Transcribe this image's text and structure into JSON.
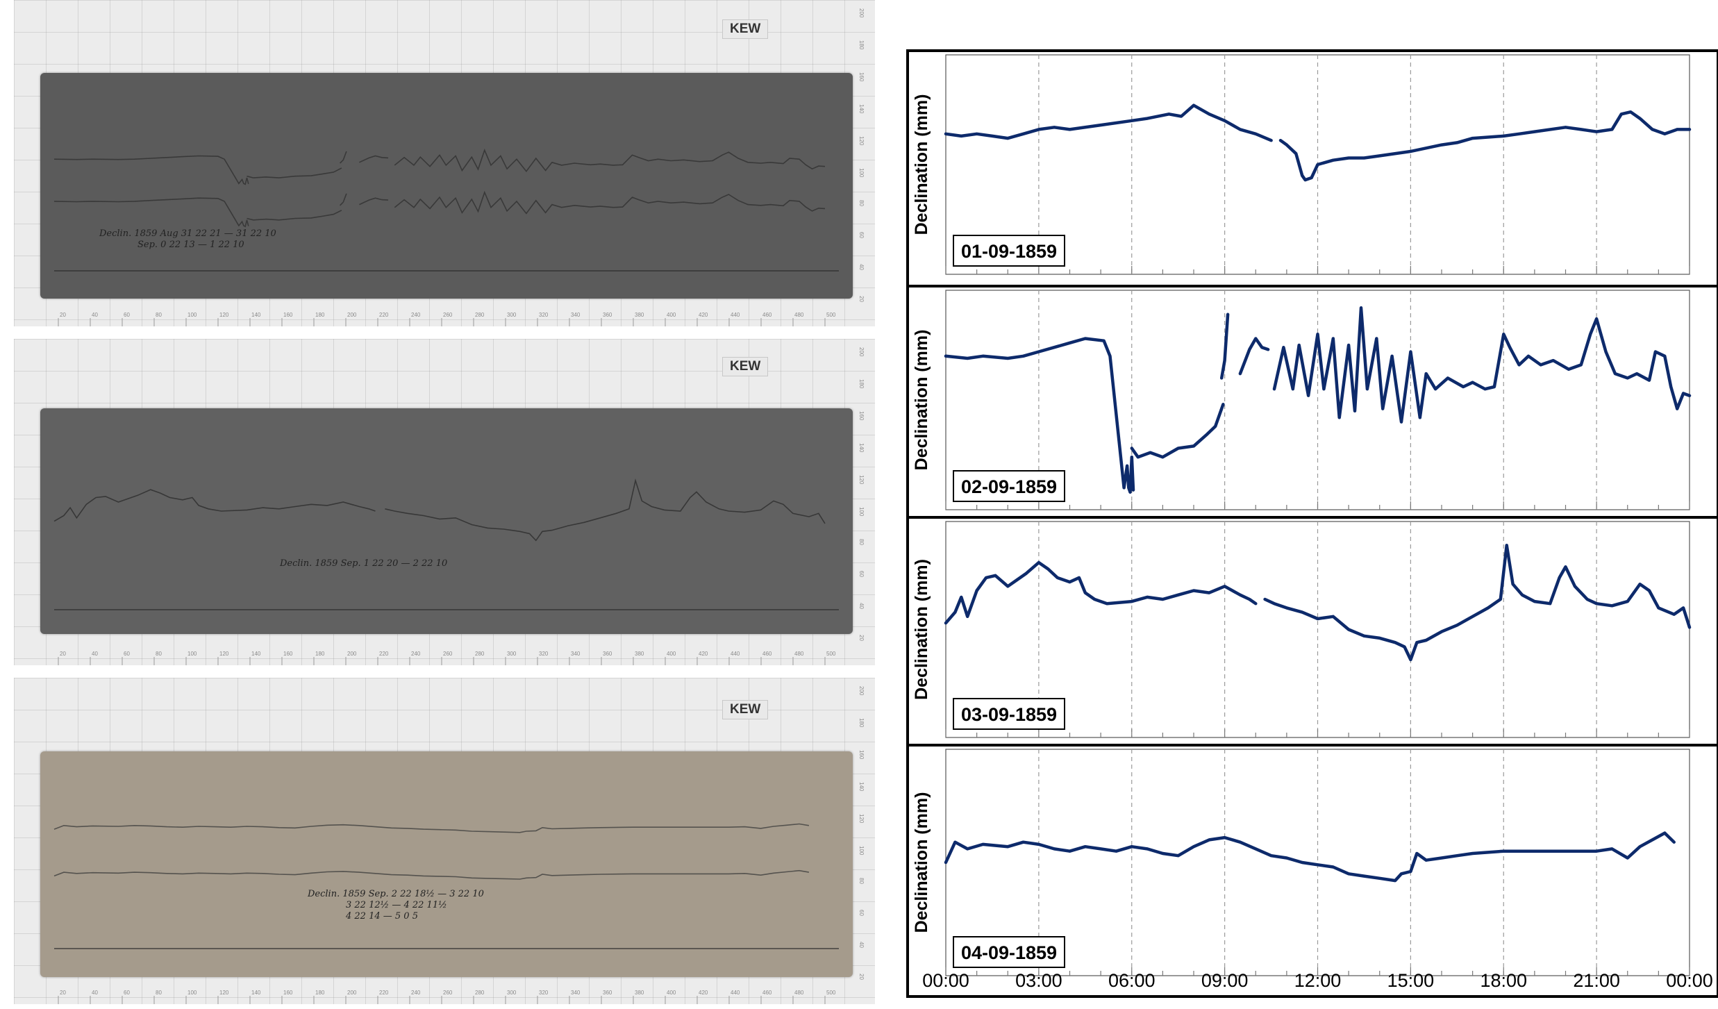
{
  "left": {
    "sheets": [
      {
        "stamp": "KEW",
        "paper_color": "#5b5b5b",
        "trace_color": "#2e2e2e",
        "note_line1": "Declin. 1859 Aug 31 22 21 — 31 22 10",
        "note_line2": "Sep. 0 22 13 — 1 22 10"
      },
      {
        "stamp": "KEW",
        "paper_color": "#616161",
        "trace_color": "#2a2a2a",
        "note_line1": "Declin. 1859 Sep. 1 22 20 — 2 22 10",
        "note_line2": ""
      },
      {
        "stamp": "KEW",
        "paper_color": "#a59b8c",
        "trace_color": "#3a3a3a",
        "note_line1": "Declin. 1859 Sep. 2 22 18½ — 3 22 10",
        "note_line2": "3 22 12½ — 4 22 11½",
        "note_line3": "4 22 14 — 5 0 5"
      }
    ],
    "ruler_bottom": [
      "20",
      "40",
      "60",
      "80",
      "100",
      "120",
      "140",
      "160",
      "180",
      "200",
      "220",
      "240",
      "260",
      "280",
      "300",
      "320",
      "340",
      "360",
      "380",
      "400",
      "420",
      "440",
      "460",
      "480",
      "500"
    ],
    "ruler_right": [
      "200",
      "180",
      "160",
      "140",
      "120",
      "100",
      "80",
      "60",
      "40",
      "20"
    ]
  },
  "chart_data": {
    "type": "line",
    "series_color": "#0d2a6b",
    "ylabel": "Declination (mm)",
    "x_unit": "hours",
    "xlim": [
      0,
      24
    ],
    "ylim": [
      0,
      1
    ],
    "x_ticks": [
      "00:00",
      "03:00",
      "06:00",
      "09:00",
      "12:00",
      "15:00",
      "18:00",
      "21:00",
      "00:00"
    ],
    "vertical_gridlines_every_hours": 3,
    "panels": [
      {
        "date": "01-09-1859",
        "segments": [
          [
            [
              0,
              0.64
            ],
            [
              0.5,
              0.63
            ],
            [
              1,
              0.64
            ],
            [
              1.5,
              0.63
            ],
            [
              2,
              0.62
            ],
            [
              2.5,
              0.64
            ],
            [
              3,
              0.66
            ],
            [
              3.5,
              0.67
            ],
            [
              4,
              0.66
            ],
            [
              5,
              0.68
            ],
            [
              6,
              0.7
            ],
            [
              6.5,
              0.71
            ],
            [
              7.2,
              0.73
            ],
            [
              7.6,
              0.72
            ],
            [
              8,
              0.77
            ],
            [
              8.5,
              0.73
            ],
            [
              9,
              0.7
            ],
            [
              9.5,
              0.66
            ],
            [
              10,
              0.64
            ],
            [
              10.5,
              0.61
            ]
          ],
          [
            [
              10.8,
              0.61
            ],
            [
              11,
              0.59
            ],
            [
              11.3,
              0.55
            ],
            [
              11.5,
              0.45
            ],
            [
              11.6,
              0.43
            ],
            [
              11.8,
              0.44
            ],
            [
              12,
              0.5
            ],
            [
              12.5,
              0.52
            ],
            [
              13,
              0.53
            ],
            [
              13.5,
              0.53
            ],
            [
              14,
              0.54
            ],
            [
              15,
              0.56
            ],
            [
              16,
              0.59
            ],
            [
              16.5,
              0.6
            ],
            [
              17,
              0.62
            ],
            [
              18,
              0.63
            ],
            [
              18.5,
              0.64
            ],
            [
              19,
              0.65
            ],
            [
              20,
              0.67
            ],
            [
              20.5,
              0.66
            ],
            [
              21,
              0.65
            ],
            [
              21.5,
              0.66
            ],
            [
              21.8,
              0.73
            ],
            [
              22.1,
              0.74
            ],
            [
              22.4,
              0.71
            ],
            [
              22.8,
              0.66
            ],
            [
              23.2,
              0.64
            ],
            [
              23.6,
              0.66
            ],
            [
              24,
              0.66
            ]
          ]
        ]
      },
      {
        "date": "02-09-1859",
        "segments": [
          [
            [
              0,
              0.7
            ],
            [
              0.7,
              0.69
            ],
            [
              1.2,
              0.7
            ],
            [
              2,
              0.69
            ],
            [
              2.5,
              0.7
            ],
            [
              3,
              0.72
            ],
            [
              3.5,
              0.74
            ],
            [
              4,
              0.76
            ],
            [
              4.5,
              0.78
            ],
            [
              5.1,
              0.77
            ],
            [
              5.3,
              0.7
            ],
            [
              5.6,
              0.3
            ],
            [
              5.75,
              0.1
            ],
            [
              5.85,
              0.2
            ],
            [
              5.9,
              0.1
            ],
            [
              5.95,
              0.08
            ],
            [
              6,
              0.24
            ],
            [
              6.05,
              0.09
            ]
          ],
          [
            [
              6.0,
              0.28
            ],
            [
              6.2,
              0.24
            ],
            [
              6.6,
              0.26
            ],
            [
              7,
              0.24
            ],
            [
              7.5,
              0.28
            ],
            [
              8,
              0.29
            ],
            [
              8.4,
              0.34
            ],
            [
              8.7,
              0.38
            ],
            [
              8.95,
              0.48
            ]
          ],
          [
            [
              8.9,
              0.6
            ],
            [
              9.0,
              0.68
            ],
            [
              9.1,
              0.89
            ]
          ],
          [
            [
              9.5,
              0.62
            ],
            [
              9.8,
              0.73
            ],
            [
              10,
              0.78
            ],
            [
              10.2,
              0.74
            ],
            [
              10.4,
              0.73
            ]
          ],
          [
            [
              10.6,
              0.55
            ],
            [
              10.9,
              0.74
            ],
            [
              11.2,
              0.55
            ],
            [
              11.4,
              0.75
            ],
            [
              11.7,
              0.52
            ],
            [
              12,
              0.8
            ],
            [
              12.2,
              0.55
            ],
            [
              12.5,
              0.78
            ],
            [
              12.7,
              0.42
            ],
            [
              13,
              0.75
            ],
            [
              13.2,
              0.45
            ],
            [
              13.4,
              0.92
            ],
            [
              13.6,
              0.55
            ],
            [
              13.9,
              0.78
            ],
            [
              14.1,
              0.46
            ],
            [
              14.4,
              0.7
            ],
            [
              14.7,
              0.4
            ],
            [
              15,
              0.72
            ],
            [
              15.3,
              0.42
            ],
            [
              15.5,
              0.62
            ],
            [
              15.8,
              0.55
            ],
            [
              16.2,
              0.6
            ],
            [
              16.7,
              0.56
            ],
            [
              17,
              0.58
            ],
            [
              17.4,
              0.55
            ],
            [
              17.7,
              0.56
            ],
            [
              18,
              0.8
            ],
            [
              18.2,
              0.74
            ],
            [
              18.5,
              0.66
            ],
            [
              18.8,
              0.7
            ],
            [
              19.2,
              0.66
            ],
            [
              19.6,
              0.68
            ],
            [
              20.1,
              0.64
            ],
            [
              20.5,
              0.66
            ],
            [
              20.8,
              0.8
            ],
            [
              21,
              0.87
            ],
            [
              21.3,
              0.72
            ],
            [
              21.6,
              0.62
            ],
            [
              22,
              0.6
            ],
            [
              22.3,
              0.62
            ],
            [
              22.7,
              0.59
            ],
            [
              22.9,
              0.72
            ],
            [
              23.2,
              0.7
            ],
            [
              23.4,
              0.56
            ],
            [
              23.6,
              0.46
            ],
            [
              23.8,
              0.53
            ],
            [
              24,
              0.52
            ]
          ]
        ]
      },
      {
        "date": "03-09-1859",
        "segments": [
          [
            [
              0,
              0.53
            ],
            [
              0.3,
              0.58
            ],
            [
              0.5,
              0.65
            ],
            [
              0.7,
              0.56
            ],
            [
              1,
              0.68
            ],
            [
              1.3,
              0.74
            ],
            [
              1.6,
              0.75
            ],
            [
              2,
              0.7
            ],
            [
              2.3,
              0.73
            ],
            [
              2.6,
              0.76
            ],
            [
              3,
              0.81
            ],
            [
              3.3,
              0.78
            ],
            [
              3.6,
              0.74
            ],
            [
              4,
              0.72
            ],
            [
              4.3,
              0.74
            ],
            [
              4.5,
              0.67
            ],
            [
              4.8,
              0.64
            ],
            [
              5.2,
              0.62
            ],
            [
              6,
              0.63
            ],
            [
              6.5,
              0.65
            ],
            [
              7,
              0.64
            ],
            [
              7.5,
              0.66
            ],
            [
              8,
              0.68
            ],
            [
              8.5,
              0.67
            ],
            [
              9,
              0.7
            ],
            [
              9.5,
              0.66
            ],
            [
              9.8,
              0.64
            ],
            [
              10,
              0.62
            ]
          ],
          [
            [
              10.3,
              0.64
            ],
            [
              10.6,
              0.62
            ],
            [
              11,
              0.6
            ],
            [
              11.5,
              0.58
            ],
            [
              12,
              0.55
            ],
            [
              12.5,
              0.56
            ],
            [
              13,
              0.5
            ],
            [
              13.5,
              0.47
            ],
            [
              14,
              0.46
            ],
            [
              14.5,
              0.44
            ],
            [
              14.8,
              0.42
            ],
            [
              15,
              0.36
            ],
            [
              15.2,
              0.44
            ],
            [
              15.5,
              0.45
            ],
            [
              16,
              0.49
            ],
            [
              16.5,
              0.52
            ],
            [
              17,
              0.56
            ],
            [
              17.5,
              0.6
            ],
            [
              17.9,
              0.64
            ],
            [
              18.1,
              0.89
            ],
            [
              18.3,
              0.71
            ],
            [
              18.6,
              0.66
            ],
            [
              19,
              0.63
            ],
            [
              19.5,
              0.62
            ],
            [
              19.8,
              0.74
            ],
            [
              20,
              0.79
            ],
            [
              20.3,
              0.7
            ],
            [
              20.7,
              0.64
            ],
            [
              21,
              0.62
            ],
            [
              21.5,
              0.61
            ],
            [
              22,
              0.63
            ],
            [
              22.4,
              0.71
            ],
            [
              22.7,
              0.68
            ],
            [
              23,
              0.6
            ],
            [
              23.5,
              0.57
            ],
            [
              23.8,
              0.6
            ],
            [
              24,
              0.51
            ]
          ]
        ]
      },
      {
        "date": "04-09-1859",
        "segments": [
          [
            [
              0,
              0.5
            ],
            [
              0.3,
              0.59
            ],
            [
              0.7,
              0.56
            ],
            [
              1.2,
              0.58
            ],
            [
              2,
              0.57
            ],
            [
              2.5,
              0.59
            ],
            [
              3,
              0.58
            ],
            [
              3.5,
              0.56
            ],
            [
              4,
              0.55
            ],
            [
              4.5,
              0.57
            ],
            [
              5,
              0.56
            ],
            [
              5.5,
              0.55
            ],
            [
              6,
              0.57
            ],
            [
              6.5,
              0.56
            ],
            [
              7,
              0.54
            ],
            [
              7.5,
              0.53
            ],
            [
              8,
              0.57
            ],
            [
              8.5,
              0.6
            ],
            [
              9,
              0.61
            ],
            [
              9.5,
              0.59
            ],
            [
              10,
              0.56
            ],
            [
              10.5,
              0.53
            ],
            [
              11,
              0.52
            ],
            [
              11.5,
              0.5
            ],
            [
              12,
              0.49
            ],
            [
              12.5,
              0.48
            ],
            [
              13,
              0.45
            ],
            [
              13.5,
              0.44
            ],
            [
              14,
              0.43
            ],
            [
              14.5,
              0.42
            ],
            [
              14.7,
              0.45
            ],
            [
              15,
              0.46
            ],
            [
              15.2,
              0.54
            ],
            [
              15.5,
              0.51
            ],
            [
              16,
              0.52
            ],
            [
              16.5,
              0.53
            ],
            [
              17,
              0.54
            ],
            [
              18,
              0.55
            ],
            [
              19,
              0.55
            ],
            [
              20,
              0.55
            ],
            [
              21,
              0.55
            ],
            [
              21.5,
              0.56
            ],
            [
              22,
              0.52
            ],
            [
              22.4,
              0.57
            ],
            [
              22.8,
              0.6
            ],
            [
              23.2,
              0.63
            ],
            [
              23.5,
              0.59
            ]
          ]
        ]
      }
    ]
  }
}
